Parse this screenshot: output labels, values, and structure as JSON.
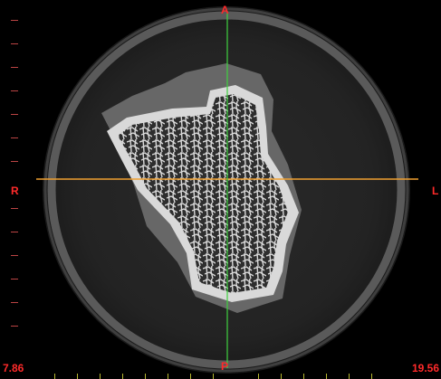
{
  "orientation": {
    "top": "A",
    "bottom": "P",
    "left": "R",
    "right": "L"
  },
  "measurements": {
    "bottom_left": "7.86",
    "bottom_right": "19.56"
  },
  "colors": {
    "orientation_label": "#ff2a2a",
    "crosshair_vertical": "#3fd23f",
    "crosshair_horizontal": "#f0a030",
    "bone": "#e9e9e9",
    "soft_tissue": "#6e6e6e",
    "background": "#000000"
  }
}
